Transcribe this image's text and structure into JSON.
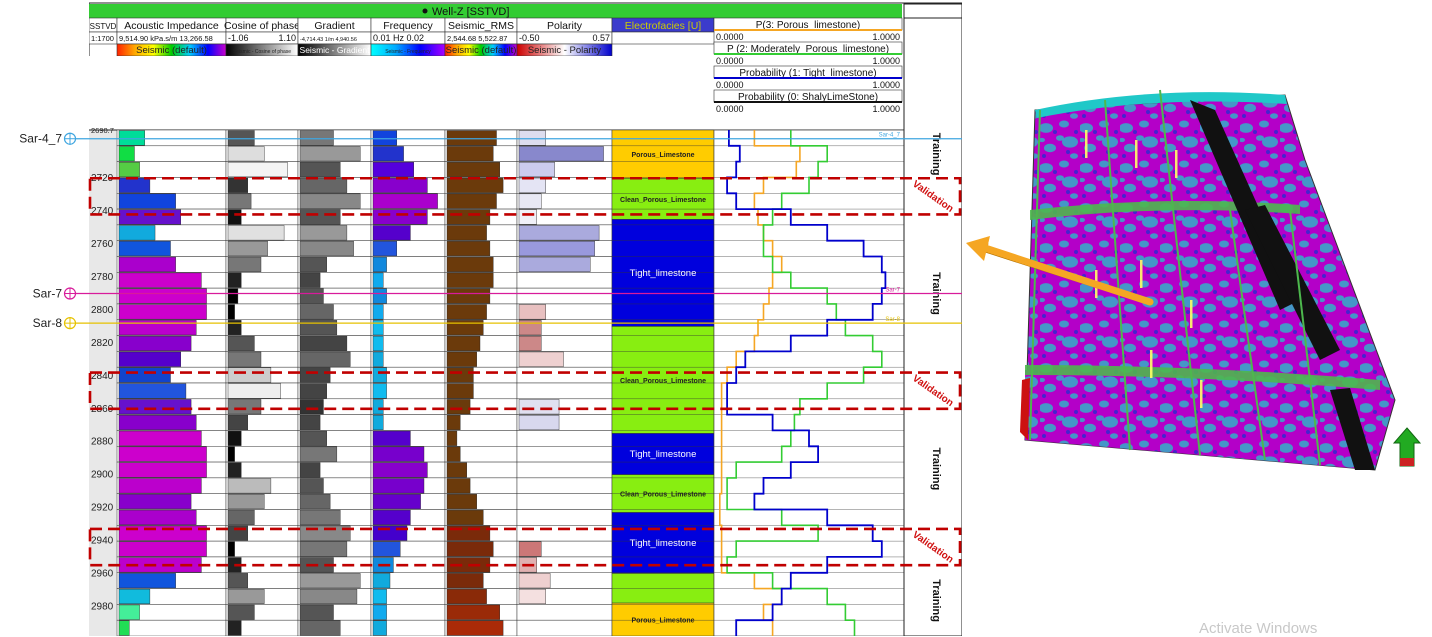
{
  "well_panel": {
    "title": "Well-Z [SSTVD]",
    "colors": {
      "title_bar": "#33cc33",
      "validation_box": "#c00000",
      "track_divider": "#555555"
    },
    "tracks": [
      {
        "name": "SSTVD",
        "scale": "1:1700",
        "min": "",
        "max": "",
        "colorbar": ""
      },
      {
        "name": "Acoustic Impedance",
        "min": "9,514.90 kPa.s/m 13,266.58",
        "max": "",
        "colorbar": "Seismic (default)"
      },
      {
        "name": "Cosine of phase",
        "min": "-1.06",
        "max": "1.10",
        "colorbar": "Seismic - Cosine of phase"
      },
      {
        "name": "Gradient",
        "min": "-4,714.43 1/m 4,940.56",
        "max": "",
        "colorbar": "Seismic - Gradient"
      },
      {
        "name": "Frequency",
        "min": "0.01 Hz 0.02",
        "max": "",
        "colorbar": "Seismic - Frequency"
      },
      {
        "name": "Seismic_RMS",
        "min": "2,544.68 5,522.87",
        "max": "",
        "colorbar": "Seismic (default)"
      },
      {
        "name": "Polarity",
        "min": "-0.50",
        "max": "0.57",
        "colorbar": "Seismic - Polarity"
      },
      {
        "name": "Electrofacies [U]",
        "min": "",
        "max": "",
        "colorbar": ""
      }
    ],
    "probability_curves": [
      {
        "label": "P(3: Porous_limestone)",
        "min": "0.0000",
        "max": "1.0000",
        "color": "#f5a623"
      },
      {
        "label": "P (2: Moderately_Porous_limestone)",
        "min": "0.0000",
        "max": "1.0000",
        "color": "#33cc33"
      },
      {
        "label": "Probability (1: Tight_limestone)",
        "min": "0.0000",
        "max": "1.0000",
        "color": "#0000cc"
      },
      {
        "label": "Probability (0: ShalyLimeStone)",
        "min": "0.0000",
        "max": "1.0000",
        "color": "#111111"
      }
    ],
    "depth_ticks": [
      "2690.7",
      "2720",
      "2740",
      "2760",
      "2780",
      "2800",
      "2820",
      "2840",
      "2860",
      "2880",
      "2900",
      "2920",
      "2940",
      "2960",
      "2980"
    ],
    "markers": [
      {
        "label": "Sar-4_7",
        "depth": 2696,
        "color": "#3fa6e0",
        "right_label": "Sar-4_7"
      },
      {
        "label": "Sar-7",
        "depth": 2790,
        "color": "#d81b9b",
        "right_label": "Sar-7"
      },
      {
        "label": "Sar-8",
        "depth": 2808,
        "color": "#e6c200",
        "right_label": "Sar-8"
      }
    ],
    "facies": [
      {
        "top": 2690.7,
        "bottom": 2720,
        "label": "Porous_Limestone",
        "color": "#ffcc00"
      },
      {
        "top": 2720,
        "bottom": 2745,
        "label": "Clean_Porous_Limestone",
        "color": "#88ee11"
      },
      {
        "top": 2745,
        "bottom": 2810,
        "label": "Tight_limestone",
        "color": "#0000dd"
      },
      {
        "top": 2810,
        "bottom": 2875,
        "label": "Clean_Porous_Limestone",
        "color": "#88ee11"
      },
      {
        "top": 2875,
        "bottom": 2900,
        "label": "Tight_limestone",
        "color": "#0000dd"
      },
      {
        "top": 2900,
        "bottom": 2923,
        "label": "Clean_Porous_Limestone",
        "color": "#88ee11"
      },
      {
        "top": 2923,
        "bottom": 2960,
        "label": "Tight_limestone",
        "color": "#0000dd"
      },
      {
        "top": 2960,
        "bottom": 2978,
        "label": "",
        "color": "#88ee11"
      },
      {
        "top": 2978,
        "bottom": 2998,
        "label": "Porous_Limestone",
        "color": "#ffcc00"
      }
    ],
    "zones": [
      {
        "top": 2690.7,
        "bottom": 2720,
        "label": "Training"
      },
      {
        "top": 2720,
        "bottom": 2742,
        "label": "Validation"
      },
      {
        "top": 2742,
        "bottom": 2838,
        "label": "Training"
      },
      {
        "top": 2838,
        "bottom": 2860,
        "label": "Validation"
      },
      {
        "top": 2860,
        "bottom": 2933,
        "label": "Training"
      },
      {
        "top": 2933,
        "bottom": 2955,
        "label": "Validation"
      },
      {
        "top": 2955,
        "bottom": 2998,
        "label": "Training"
      }
    ],
    "logs": {
      "acoustic_impedance": {
        "values": [
          0.25,
          0.15,
          0.2,
          0.3,
          0.55,
          0.6,
          0.35,
          0.5,
          0.55,
          0.8,
          0.85,
          0.85,
          0.75,
          0.7,
          0.6,
          0.5,
          0.65,
          0.7,
          0.75,
          0.8,
          0.85,
          0.85,
          0.8,
          0.7,
          0.75,
          0.85,
          0.85,
          0.8,
          0.55,
          0.3,
          0.2,
          0.1
        ],
        "colors": [
          "#00dd99",
          "#11dd44",
          "#55cc44",
          "#2233cc",
          "#1144dd",
          "#6611cc",
          "#11aadd",
          "#1155dd",
          "#aa00cc",
          "#cc00cc",
          "#cc00cc",
          "#cc00cc",
          "#bb00cc",
          "#8800cc",
          "#5500cc",
          "#1144cc",
          "#2255dd",
          "#6611cc",
          "#8800cc",
          "#cc00cc",
          "#cc00cc",
          "#cc00cc",
          "#bb00cc",
          "#8800cc",
          "#aa00cc",
          "#cc00cc",
          "#cc00cc",
          "#bb00cc",
          "#1155dd",
          "#11bbdd",
          "#44ee99",
          "#22dd55"
        ]
      },
      "cosine_of_phase": {
        "values": [
          0.4,
          0.55,
          0.9,
          0.3,
          0.35,
          0.2,
          0.85,
          0.6,
          0.5,
          0.2,
          0.15,
          0.1,
          0.2,
          0.4,
          0.5,
          0.65,
          0.8,
          0.5,
          0.3,
          0.2,
          0.1,
          0.2,
          0.65,
          0.55,
          0.4,
          0.3,
          0.1,
          0.2,
          0.3,
          0.55,
          0.4,
          0.2
        ],
        "colors": [
          "#555555",
          "#dddddd",
          "#f4f4f4",
          "#333333",
          "#777777",
          "#111111",
          "#e0e0e0",
          "#999999",
          "#777777",
          "#222222",
          "#000000",
          "#000000",
          "#222222",
          "#555555",
          "#777777",
          "#cccccc",
          "#eeeeee",
          "#777777",
          "#444444",
          "#111111",
          "#000000",
          "#222222",
          "#bbbbbb",
          "#999999",
          "#666666",
          "#444444",
          "#000000",
          "#222222",
          "#555555",
          "#999999",
          "#555555",
          "#222222"
        ]
      },
      "gradient": {
        "values": [
          0.5,
          0.9,
          0.6,
          0.7,
          0.9,
          0.6,
          0.7,
          0.8,
          0.4,
          0.3,
          0.35,
          0.5,
          0.55,
          0.7,
          0.75,
          0.45,
          0.4,
          0.35,
          0.3,
          0.4,
          0.55,
          0.3,
          0.35,
          0.45,
          0.6,
          0.75,
          0.7,
          0.5,
          0.9,
          0.85,
          0.5,
          0.6
        ],
        "colors": [
          "#777777",
          "#999999",
          "#555555",
          "#666666",
          "#888888",
          "#555555",
          "#999999",
          "#888888",
          "#555555",
          "#444444",
          "#555555",
          "#666666",
          "#555555",
          "#444444",
          "#666666",
          "#444444",
          "#444444",
          "#333333",
          "#444444",
          "#555555",
          "#777777",
          "#444444",
          "#555555",
          "#666666",
          "#777777",
          "#888888",
          "#777777",
          "#555555",
          "#999999",
          "#888888",
          "#555555",
          "#666666"
        ]
      },
      "frequency": {
        "values": [
          0.35,
          0.45,
          0.6,
          0.8,
          0.95,
          0.8,
          0.55,
          0.35,
          0.2,
          0.15,
          0.2,
          0.15,
          0.15,
          0.15,
          0.15,
          0.2,
          0.2,
          0.15,
          0.15,
          0.55,
          0.75,
          0.8,
          0.75,
          0.7,
          0.55,
          0.5,
          0.4,
          0.3,
          0.25,
          0.2,
          0.2,
          0.2
        ],
        "colors": [
          "#1144dd",
          "#2233cc",
          "#5500dd",
          "#8800cc",
          "#aa00cc",
          "#8800cc",
          "#5500cc",
          "#2255dd",
          "#1188dd",
          "#11aaee",
          "#1188dd",
          "#11aaee",
          "#11bbee",
          "#11bbee",
          "#11aadd",
          "#11aadd",
          "#11bbee",
          "#11aadd",
          "#11aadd",
          "#5500cc",
          "#7700cc",
          "#8800cc",
          "#7700cc",
          "#6600cc",
          "#5500cc",
          "#4400cc",
          "#2255dd",
          "#1188dd",
          "#11aadd",
          "#11bbee",
          "#11aaee",
          "#11aadd"
        ]
      },
      "seismic_rms": {
        "values": [
          0.75,
          0.7,
          0.8,
          0.85,
          0.75,
          0.65,
          0.6,
          0.65,
          0.7,
          0.7,
          0.65,
          0.6,
          0.55,
          0.5,
          0.45,
          0.4,
          0.4,
          0.35,
          0.2,
          0.15,
          0.2,
          0.3,
          0.35,
          0.45,
          0.55,
          0.65,
          0.7,
          0.65,
          0.55,
          0.6,
          0.8,
          0.85
        ],
        "colors": [
          "#6b3a0b",
          "#6b3a0b",
          "#6b3a0b",
          "#6b3a0b",
          "#6b3a0b",
          "#6b3a0b",
          "#6b3a0b",
          "#6b3a0b",
          "#6b3a0b",
          "#6b3a0b",
          "#6b3a0b",
          "#6b3a0b",
          "#6b3a0b",
          "#6b3a0b",
          "#6b3a0b",
          "#6b3a0b",
          "#6b3a0b",
          "#6b3a0b",
          "#6b3a0b",
          "#6b3a0b",
          "#6b3a0b",
          "#6b3a0b",
          "#6b3a0b",
          "#6b3a0b",
          "#6b3a0b",
          "#7a2a0a",
          "#7a2a0a",
          "#7a2a0a",
          "#7a2a0a",
          "#8a2a08",
          "#9a2a08",
          "#aa2a08"
        ]
      },
      "polarity": {
        "values": [
          0.3,
          0.95,
          0.4,
          0.3,
          0.25,
          0.2,
          0.9,
          0.85,
          0.8,
          0.0,
          0.0,
          0.3,
          0.25,
          0.25,
          0.5,
          0.0,
          0.0,
          0.45,
          0.45,
          0.0,
          0.0,
          0.0,
          0.0,
          0.0,
          0.0,
          0.0,
          0.25,
          0.2,
          0.35,
          0.3,
          0.0,
          0.0
        ],
        "colors": [
          "#ddddee",
          "#8888cc",
          "#ccccee",
          "#e4e4f4",
          "#e8e8f4",
          "#f0f0f8",
          "#aaaadd",
          "#9999dd",
          "#aaaadd",
          "#ffffff",
          "#ffffff",
          "#e8c0c0",
          "#cc8888",
          "#cc8888",
          "#eed0d0",
          "#ffffff",
          "#ffffff",
          "#e0e0f0",
          "#d8d8ee",
          "#ffffff",
          "#ffffff",
          "#ffffff",
          "#ffffff",
          "#ffffff",
          "#ffffff",
          "#ffffff",
          "#cc7777",
          "#e0b0b0",
          "#eed0d0",
          "#f4e0e0",
          "#ffffff",
          "#ffffff"
        ]
      },
      "p_porous": [
        0.2,
        0.45,
        0.43,
        0.25,
        0.2,
        0.22,
        0.25,
        0.3,
        0.35,
        0.3,
        0.28,
        0.25,
        0.22,
        0.2,
        0.1,
        0.05,
        0.02,
        0.02,
        0.02,
        0.02,
        0.02,
        0.02,
        0.02,
        0.01,
        0.01,
        0.02,
        0.02,
        0.02,
        0.2,
        0.35,
        0.25,
        0.3
      ],
      "p_moderate": [
        0.4,
        0.6,
        0.55,
        0.5,
        0.35,
        0.3,
        0.25,
        0.25,
        0.3,
        0.4,
        0.6,
        0.65,
        0.7,
        0.85,
        0.9,
        0.8,
        0.6,
        0.45,
        0.42,
        0.4,
        0.35,
        0.1,
        0.05,
        0.05,
        0.35,
        0.55,
        0.1,
        0.05,
        0.3,
        0.6,
        0.7,
        0.75
      ],
      "p_tight": [
        0.06,
        0.12,
        0.1,
        0.05,
        0.1,
        0.4,
        0.6,
        0.8,
        0.9,
        0.92,
        0.9,
        0.85,
        0.6,
        0.4,
        0.15,
        0.1,
        0.05,
        0.05,
        0.3,
        0.5,
        0.55,
        0.4,
        0.25,
        0.2,
        0.6,
        0.85,
        0.9,
        0.6,
        0.4,
        0.35,
        0.3,
        0.1
      ]
    }
  },
  "model_view": {
    "colors": {
      "surface": "#b400c8",
      "accent": "#20c8c8",
      "fault_wall": "#111111",
      "section_line": "#4db84d",
      "arrow": "#f5a623"
    },
    "arrow_direction": "pointing to well panel",
    "north_arrow_icon": "north-arrow-icon"
  },
  "watermark": {
    "text": "Activate Windows"
  }
}
